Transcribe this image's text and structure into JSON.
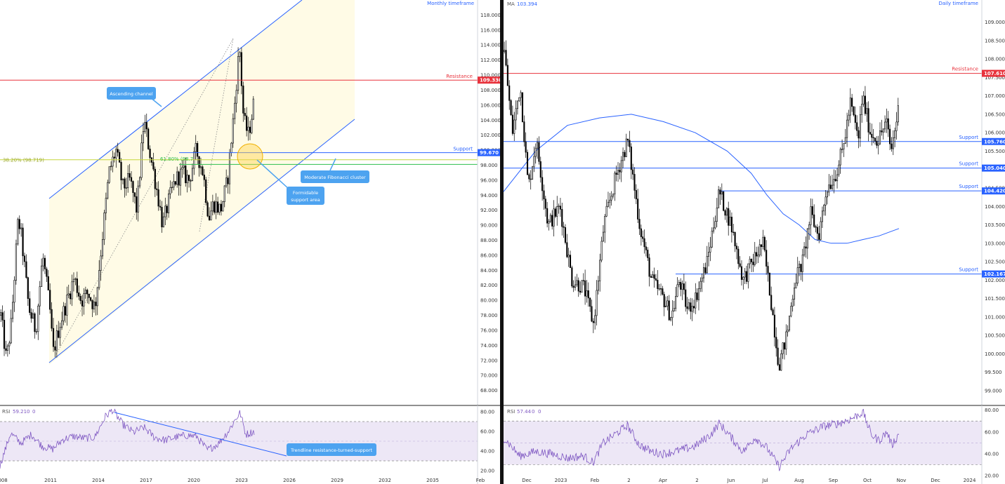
{
  "colors": {
    "up_candle": "#ffffff",
    "down_candle": "#000000",
    "resistance": "#e8323c",
    "support": "#2962ff",
    "channel": "#2962ff",
    "channel_fill": "#fffbe6",
    "fib_382": "#c6d63a",
    "fib_618": "#2ebf4e",
    "ma": "#2962ff",
    "rsi_line": "#7e57c2",
    "rsi_band": "#ede7f6",
    "callout": "#4da3f0",
    "circle": "#ffd24d"
  },
  "chart_data": [
    {
      "id": "monthly",
      "type": "candlestick",
      "timeframe_label": "Monthly timeframe",
      "x_ticks": [
        "008",
        "2011",
        "2014",
        "2017",
        "2020",
        "2023",
        "2026",
        "2029",
        "2032",
        "2035",
        "Feb"
      ],
      "y_ticks": [
        "68.000",
        "70.000",
        "72.000",
        "74.000",
        "76.000",
        "78.000",
        "80.000",
        "82.000",
        "84.000",
        "86.000",
        "88.000",
        "90.000",
        "92.000",
        "94.000",
        "96.000",
        "98.000",
        "100.000",
        "102.000",
        "104.000",
        "106.000",
        "108.000",
        "110.000",
        "112.000",
        "114.000",
        "116.000",
        "118.000"
      ],
      "ylim": [
        66,
        120
      ],
      "key_points": [
        {
          "x": 0.0,
          "y": 78
        },
        {
          "x": 0.8,
          "y": 72
        },
        {
          "x": 1.5,
          "y": 77
        },
        {
          "x": 2.5,
          "y": 91
        },
        {
          "x": 3.0,
          "y": 88
        },
        {
          "x": 4.0,
          "y": 79
        },
        {
          "x": 5.0,
          "y": 76
        },
        {
          "x": 6.0,
          "y": 86
        },
        {
          "x": 7.0,
          "y": 79
        },
        {
          "x": 7.5,
          "y": 73
        },
        {
          "x": 8.5,
          "y": 77
        },
        {
          "x": 9.5,
          "y": 80
        },
        {
          "x": 10.5,
          "y": 83
        },
        {
          "x": 11.5,
          "y": 80
        },
        {
          "x": 12.5,
          "y": 81
        },
        {
          "x": 13.5,
          "y": 79
        },
        {
          "x": 14.5,
          "y": 88
        },
        {
          "x": 15.5,
          "y": 97
        },
        {
          "x": 16.5,
          "y": 100
        },
        {
          "x": 17.5,
          "y": 95
        },
        {
          "x": 18.5,
          "y": 96
        },
        {
          "x": 19.5,
          "y": 92
        },
        {
          "x": 20.5,
          "y": 104
        },
        {
          "x": 21.5,
          "y": 99
        },
        {
          "x": 22.5,
          "y": 94
        },
        {
          "x": 23.2,
          "y": 90
        },
        {
          "x": 24.0,
          "y": 93
        },
        {
          "x": 25.0,
          "y": 96
        },
        {
          "x": 26.0,
          "y": 97
        },
        {
          "x": 27.0,
          "y": 96
        },
        {
          "x": 28.0,
          "y": 100
        },
        {
          "x": 29.0,
          "y": 97
        },
        {
          "x": 29.8,
          "y": 91
        },
        {
          "x": 30.5,
          "y": 93
        },
        {
          "x": 31.5,
          "y": 92
        },
        {
          "x": 32.5,
          "y": 96
        },
        {
          "x": 33.5,
          "y": 106
        },
        {
          "x": 34.2,
          "y": 114
        },
        {
          "x": 34.8,
          "y": 104
        },
        {
          "x": 35.5,
          "y": 102
        },
        {
          "x": 36.2,
          "y": 106
        }
      ],
      "y_range_labels": [
        {
          "text": "109.330",
          "kind": "resistance"
        },
        {
          "text": "99.670",
          "kind": "support"
        }
      ],
      "levels": [
        {
          "label": "Resistance",
          "value": 109.33,
          "kind": "resistance"
        },
        {
          "label": "Support",
          "value": 99.67,
          "kind": "support"
        }
      ],
      "fibs": [
        {
          "label": "38.20% (98.719)",
          "value": 98.719,
          "kind": "fib_382"
        },
        {
          "label": "61.80% (98.7",
          "value": 98.7,
          "kind": "fib_618"
        }
      ],
      "annotations": {
        "ascending_channel": "Ascending channel",
        "fib_cluster": "Moderate Fibonacci cluster",
        "support_area_line1": "Formidable",
        "support_area_line2": "support area",
        "trendline": "Trendline resistance-turned-support"
      },
      "rsi": {
        "label": "RSI",
        "value": "59.21",
        "extra1": "0",
        "extra2": "0",
        "y_ticks": [
          "80.00",
          "60.00",
          "40.00",
          "20.00"
        ],
        "ylim": [
          15,
          85
        ],
        "key_points": [
          {
            "x": 0.0,
            "y": 25
          },
          {
            "x": 1.5,
            "y": 58
          },
          {
            "x": 3.0,
            "y": 48
          },
          {
            "x": 4.5,
            "y": 57
          },
          {
            "x": 6.0,
            "y": 45
          },
          {
            "x": 7.5,
            "y": 42
          },
          {
            "x": 9.0,
            "y": 52
          },
          {
            "x": 10.5,
            "y": 55
          },
          {
            "x": 12.0,
            "y": 53
          },
          {
            "x": 13.5,
            "y": 54
          },
          {
            "x": 15.0,
            "y": 75
          },
          {
            "x": 16.0,
            "y": 82
          },
          {
            "x": 17.5,
            "y": 67
          },
          {
            "x": 19.0,
            "y": 59
          },
          {
            "x": 20.5,
            "y": 64
          },
          {
            "x": 22.0,
            "y": 54
          },
          {
            "x": 23.5,
            "y": 51
          },
          {
            "x": 25.0,
            "y": 54
          },
          {
            "x": 26.5,
            "y": 56
          },
          {
            "x": 28.0,
            "y": 55
          },
          {
            "x": 29.5,
            "y": 41
          },
          {
            "x": 31.0,
            "y": 47
          },
          {
            "x": 32.5,
            "y": 60
          },
          {
            "x": 33.5,
            "y": 72
          },
          {
            "x": 34.2,
            "y": 79
          },
          {
            "x": 35.0,
            "y": 57
          },
          {
            "x": 36.2,
            "y": 60
          }
        ]
      }
    },
    {
      "id": "daily",
      "type": "candlestick",
      "timeframe_label": "Daily timeframe",
      "ma_label": "MA",
      "ma_value": "103.394",
      "x_ticks": [
        "Dec",
        "2023",
        "Feb",
        "2",
        "Apr",
        "2",
        "Jun",
        "Jul",
        "Aug",
        "Sep",
        "Oct",
        "Nov",
        "Dec",
        "2024"
      ],
      "y_ticks": [
        "99.000",
        "99.500",
        "100.000",
        "100.500",
        "101.000",
        "101.500",
        "102.000",
        "102.500",
        "103.000",
        "103.500",
        "104.000",
        "104.500",
        "105.000",
        "105.500",
        "106.000",
        "106.500",
        "107.000",
        "107.500",
        "108.000",
        "108.500",
        "109.000"
      ],
      "ylim": [
        98.6,
        109.6
      ],
      "key_points": [
        {
          "x": 0.0,
          "y": 108.2
        },
        {
          "x": 1.0,
          "y": 106.0
        },
        {
          "x": 2.0,
          "y": 107.3
        },
        {
          "x": 3.0,
          "y": 104.5
        },
        {
          "x": 4.0,
          "y": 105.8
        },
        {
          "x": 5.5,
          "y": 103.5
        },
        {
          "x": 7.0,
          "y": 104.0
        },
        {
          "x": 8.5,
          "y": 102.0
        },
        {
          "x": 10.0,
          "y": 101.8
        },
        {
          "x": 11.2,
          "y": 100.8
        },
        {
          "x": 12.5,
          "y": 103.5
        },
        {
          "x": 14.0,
          "y": 104.8
        },
        {
          "x": 15.5,
          "y": 105.8
        },
        {
          "x": 17.0,
          "y": 103.5
        },
        {
          "x": 18.5,
          "y": 102.0
        },
        {
          "x": 20.0,
          "y": 101.5
        },
        {
          "x": 21.0,
          "y": 101.0
        },
        {
          "x": 22.0,
          "y": 102.0
        },
        {
          "x": 23.0,
          "y": 101.2
        },
        {
          "x": 24.0,
          "y": 101.5
        },
        {
          "x": 25.5,
          "y": 102.5
        },
        {
          "x": 27.0,
          "y": 104.4
        },
        {
          "x": 28.5,
          "y": 103.5
        },
        {
          "x": 30.0,
          "y": 102.0
        },
        {
          "x": 31.2,
          "y": 102.5
        },
        {
          "x": 32.5,
          "y": 103.0
        },
        {
          "x": 33.5,
          "y": 101.5
        },
        {
          "x": 34.5,
          "y": 99.7
        },
        {
          "x": 35.5,
          "y": 100.5
        },
        {
          "x": 36.5,
          "y": 102.0
        },
        {
          "x": 37.5,
          "y": 102.5
        },
        {
          "x": 38.5,
          "y": 103.8
        },
        {
          "x": 39.5,
          "y": 103.2
        },
        {
          "x": 40.5,
          "y": 104.5
        },
        {
          "x": 41.5,
          "y": 104.8
        },
        {
          "x": 42.5,
          "y": 105.5
        },
        {
          "x": 43.5,
          "y": 106.8
        },
        {
          "x": 44.5,
          "y": 105.8
        },
        {
          "x": 45.0,
          "y": 107.0
        },
        {
          "x": 46.0,
          "y": 106.0
        },
        {
          "x": 47.0,
          "y": 105.8
        },
        {
          "x": 48.0,
          "y": 106.3
        },
        {
          "x": 48.6,
          "y": 105.5
        },
        {
          "x": 49.5,
          "y": 106.6
        }
      ],
      "ma_points": [
        {
          "x": 0.0,
          "y": 104.4
        },
        {
          "x": 4.0,
          "y": 105.5
        },
        {
          "x": 8.0,
          "y": 106.2
        },
        {
          "x": 12.0,
          "y": 106.4
        },
        {
          "x": 16.0,
          "y": 106.5
        },
        {
          "x": 20.0,
          "y": 106.3
        },
        {
          "x": 24.0,
          "y": 106.0
        },
        {
          "x": 28.0,
          "y": 105.5
        },
        {
          "x": 31.0,
          "y": 104.9
        },
        {
          "x": 33.0,
          "y": 104.3
        },
        {
          "x": 35.0,
          "y": 103.8
        },
        {
          "x": 37.0,
          "y": 103.5
        },
        {
          "x": 39.0,
          "y": 103.1
        },
        {
          "x": 41.0,
          "y": 103.0
        },
        {
          "x": 43.0,
          "y": 103.0
        },
        {
          "x": 45.0,
          "y": 103.1
        },
        {
          "x": 47.0,
          "y": 103.2
        },
        {
          "x": 49.5,
          "y": 103.4
        }
      ],
      "y_range_labels": [
        {
          "text": "107.610",
          "kind": "resistance"
        },
        {
          "text": "105.760",
          "kind": "support"
        },
        {
          "text": "105.040",
          "kind": "support"
        },
        {
          "text": "104.420",
          "kind": "support"
        },
        {
          "text": "102.167",
          "kind": "support"
        }
      ],
      "levels": [
        {
          "label": "Resistance",
          "value": 107.61,
          "kind": "resistance"
        },
        {
          "label": "Support",
          "value": 105.76,
          "kind": "support"
        },
        {
          "label": "Support",
          "value": 105.04,
          "kind": "support"
        },
        {
          "label": "Support",
          "value": 104.42,
          "kind": "support"
        },
        {
          "label": "Support",
          "value": 102.167,
          "kind": "support"
        }
      ],
      "rsi": {
        "label": "RSI",
        "value": "57.44",
        "extra1": "0",
        "extra2": "0",
        "y_ticks": [
          "80.00",
          "60.00",
          "40.00",
          "20.00"
        ],
        "ylim": [
          20,
          83
        ],
        "key_points": [
          {
            "x": 0.0,
            "y": 55
          },
          {
            "x": 2.0,
            "y": 38
          },
          {
            "x": 4.0,
            "y": 42
          },
          {
            "x": 6.0,
            "y": 40
          },
          {
            "x": 8.0,
            "y": 36
          },
          {
            "x": 10.0,
            "y": 38
          },
          {
            "x": 11.2,
            "y": 32
          },
          {
            "x": 12.5,
            "y": 50
          },
          {
            "x": 14.0,
            "y": 58
          },
          {
            "x": 15.5,
            "y": 66
          },
          {
            "x": 17.0,
            "y": 48
          },
          {
            "x": 18.5,
            "y": 42
          },
          {
            "x": 20.0,
            "y": 40
          },
          {
            "x": 22.0,
            "y": 43
          },
          {
            "x": 24.0,
            "y": 47
          },
          {
            "x": 26.0,
            "y": 58
          },
          {
            "x": 27.0,
            "y": 68
          },
          {
            "x": 28.5,
            "y": 55
          },
          {
            "x": 30.0,
            "y": 42
          },
          {
            "x": 31.5,
            "y": 55
          },
          {
            "x": 33.0,
            "y": 45
          },
          {
            "x": 34.5,
            "y": 28
          },
          {
            "x": 36.0,
            "y": 45
          },
          {
            "x": 38.0,
            "y": 58
          },
          {
            "x": 40.0,
            "y": 65
          },
          {
            "x": 42.0,
            "y": 68
          },
          {
            "x": 43.5,
            "y": 72
          },
          {
            "x": 45.0,
            "y": 78
          },
          {
            "x": 46.0,
            "y": 58
          },
          {
            "x": 47.0,
            "y": 52
          },
          {
            "x": 48.0,
            "y": 60
          },
          {
            "x": 48.6,
            "y": 48
          },
          {
            "x": 49.5,
            "y": 58
          }
        ]
      }
    }
  ]
}
